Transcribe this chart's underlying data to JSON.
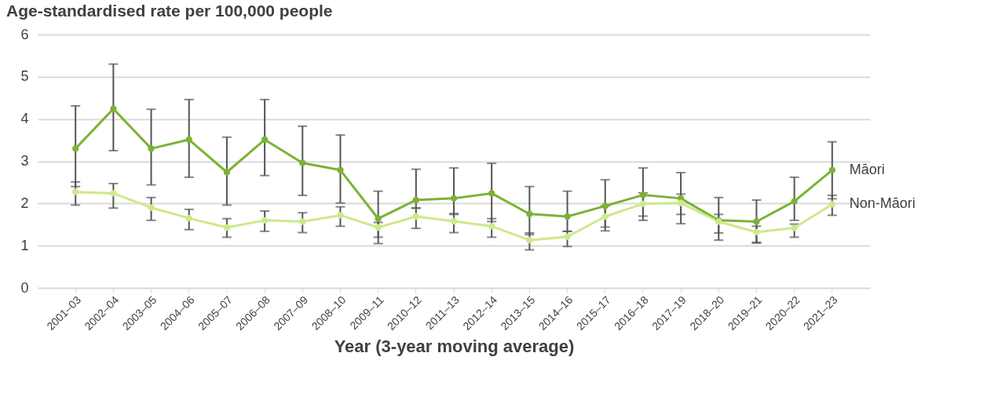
{
  "chart_data": {
    "type": "line",
    "title": "Age-standardised rate per 100,000 people",
    "xlabel": "Year (3-year moving average)",
    "categories": [
      "2001–03",
      "2002–04",
      "2003–05",
      "2004–06",
      "2005–07",
      "2006–08",
      "2007–09",
      "2008–10",
      "2009–11",
      "2010–12",
      "2011–13",
      "2012–14",
      "2013–15",
      "2014–16",
      "2015–17",
      "2016–18",
      "2017–19",
      "2018–20",
      "2019–21",
      "2020–22",
      "2021–23"
    ],
    "series": [
      {
        "name": "Māori",
        "color": "#7cb236",
        "values": [
          3.3,
          4.24,
          3.3,
          3.51,
          2.74,
          3.51,
          2.96,
          2.79,
          1.64,
          2.08,
          2.12,
          2.24,
          1.75,
          1.69,
          1.94,
          2.2,
          2.12,
          1.6,
          1.57,
          2.05,
          2.79
        ],
        "errors": [
          [
            2.4,
            4.31
          ],
          [
            3.25,
            5.3
          ],
          [
            2.44,
            4.23
          ],
          [
            2.62,
            4.46
          ],
          [
            1.96,
            3.57
          ],
          [
            2.66,
            4.46
          ],
          [
            2.19,
            3.83
          ],
          [
            2.01,
            3.62
          ],
          [
            1.2,
            2.29
          ],
          [
            1.89,
            2.81
          ],
          [
            1.74,
            2.84
          ],
          [
            1.57,
            2.95
          ],
          [
            1.26,
            2.4
          ],
          [
            1.34,
            2.29
          ],
          [
            1.44,
            2.56
          ],
          [
            1.7,
            2.84
          ],
          [
            1.74,
            2.73
          ],
          [
            1.3,
            2.14
          ],
          [
            1.08,
            2.08
          ],
          [
            1.6,
            2.62
          ],
          [
            2.11,
            3.46
          ]
        ]
      },
      {
        "name": "Non-Māori",
        "color": "#cde98a",
        "values": [
          2.27,
          2.24,
          1.9,
          1.65,
          1.43,
          1.6,
          1.57,
          1.72,
          1.43,
          1.69,
          1.58,
          1.46,
          1.13,
          1.21,
          1.69,
          1.99,
          2.01,
          1.57,
          1.32,
          1.42,
          1.98
        ],
        "errors": [
          [
            1.96,
            2.51
          ],
          [
            1.89,
            2.47
          ],
          [
            1.6,
            2.14
          ],
          [
            1.38,
            1.86
          ],
          [
            1.2,
            1.64
          ],
          [
            1.34,
            1.82
          ],
          [
            1.31,
            1.78
          ],
          [
            1.46,
            1.92
          ],
          [
            1.05,
            1.55
          ],
          [
            1.41,
            1.89
          ],
          [
            1.31,
            1.76
          ],
          [
            1.2,
            1.64
          ],
          [
            0.9,
            1.3
          ],
          [
            0.98,
            1.34
          ],
          [
            1.35,
            1.94
          ],
          [
            1.6,
            2.25
          ],
          [
            1.52,
            2.22
          ],
          [
            1.13,
            1.74
          ],
          [
            1.06,
            1.46
          ],
          [
            1.2,
            1.51
          ],
          [
            1.72,
            2.19
          ]
        ]
      }
    ],
    "ylim": [
      0,
      6
    ],
    "yticks": [
      0,
      1,
      2,
      3,
      4,
      5,
      6
    ],
    "grid": "y",
    "legend": false,
    "marker": "circle",
    "line_style": "solid"
  }
}
